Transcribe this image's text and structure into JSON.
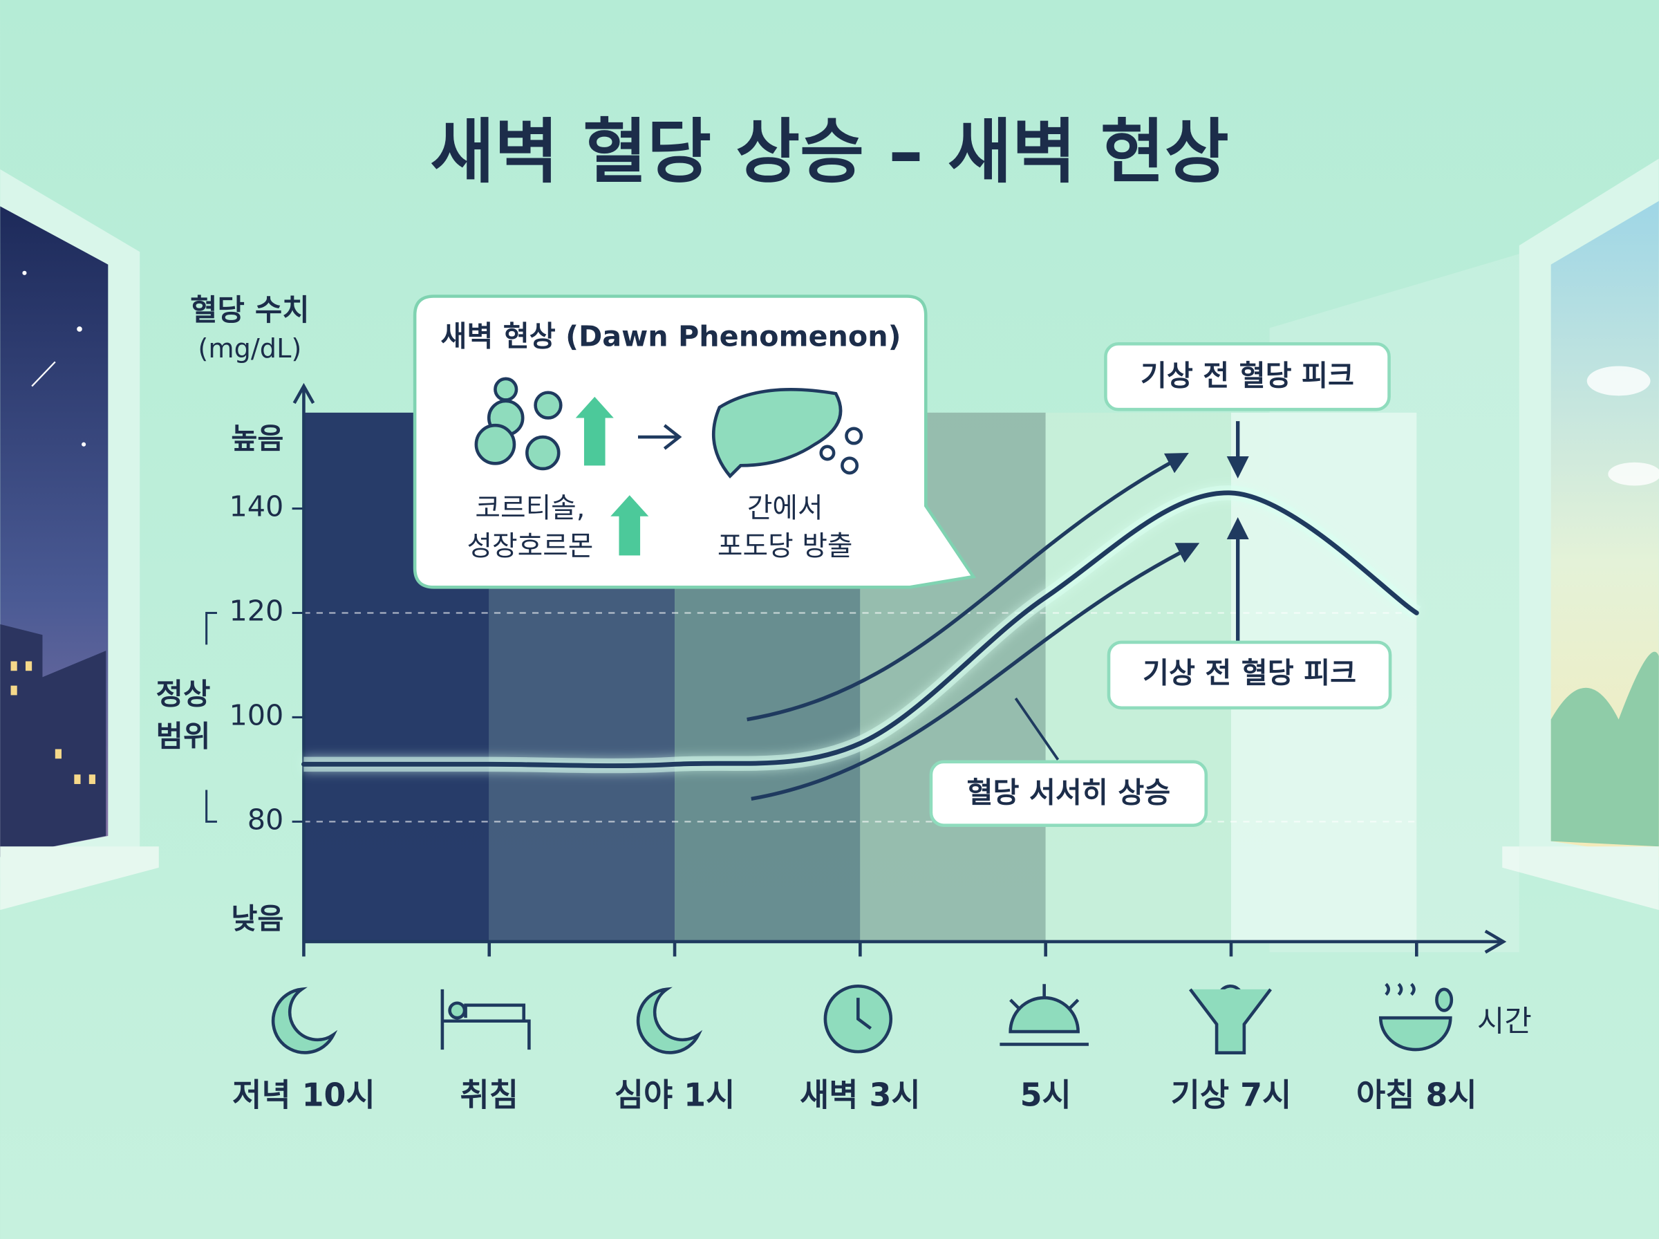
{
  "chart_data": {
    "type": "line",
    "title": "새벽 혈당 상승 – 새벽 현상",
    "y_label": "혈당 수치",
    "y_unit": "(mg/dL)",
    "x_label": "시간",
    "categories": [
      "저녁 10시",
      "취침",
      "심야 1시",
      "새벽 3시",
      "5시",
      "기상 7시",
      "아침 8시"
    ],
    "values": [
      91,
      91,
      91,
      95,
      123,
      143,
      120
    ],
    "color": "#1f3a5f",
    "ylim": [
      57,
      160
    ],
    "yticks": [
      {
        "value": 61,
        "label": "낮음"
      },
      80,
      100,
      120,
      140,
      {
        "value": 153,
        "label": "높음"
      }
    ],
    "normal_range": {
      "label": [
        "정상",
        "범위"
      ],
      "min": 80,
      "max": 120
    },
    "callout": {
      "title": "새벽 현상 (Dawn Phenomenon)",
      "left_text": [
        "코르티솔,",
        "성장호르몬"
      ],
      "right_text": [
        "간에서",
        "포도당 방출"
      ]
    },
    "annotations": [
      "기상 전 혈당 피크",
      "기상 전 혈당 피크",
      "혈당 서서히 상승"
    ]
  }
}
